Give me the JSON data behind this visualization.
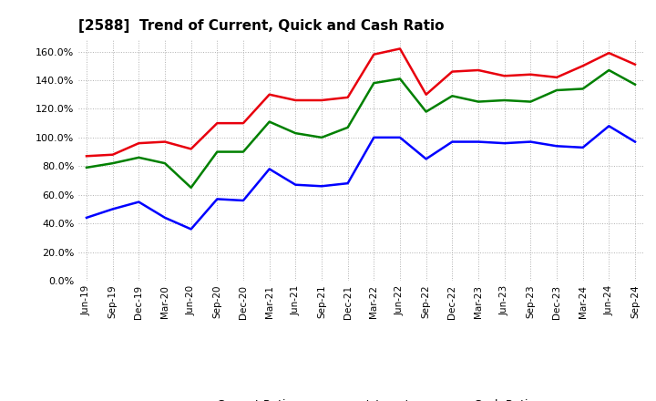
{
  "title": "[2588]  Trend of Current, Quick and Cash Ratio",
  "x_labels": [
    "Jun-19",
    "Sep-19",
    "Dec-19",
    "Mar-20",
    "Jun-20",
    "Sep-20",
    "Dec-20",
    "Mar-21",
    "Jun-21",
    "Sep-21",
    "Dec-21",
    "Mar-22",
    "Jun-22",
    "Sep-22",
    "Dec-22",
    "Mar-23",
    "Jun-23",
    "Sep-23",
    "Dec-23",
    "Mar-24",
    "Jun-24",
    "Sep-24"
  ],
  "current_ratio": [
    87,
    88,
    96,
    97,
    92,
    110,
    110,
    130,
    126,
    126,
    128,
    158,
    162,
    130,
    146,
    147,
    143,
    144,
    142,
    150,
    159,
    151
  ],
  "quick_ratio": [
    79,
    82,
    86,
    82,
    65,
    90,
    90,
    111,
    103,
    100,
    107,
    138,
    141,
    118,
    129,
    125,
    126,
    125,
    133,
    134,
    147,
    137
  ],
  "cash_ratio": [
    44,
    50,
    55,
    44,
    36,
    57,
    56,
    78,
    67,
    66,
    68,
    100,
    100,
    85,
    97,
    97,
    96,
    97,
    94,
    93,
    108,
    97
  ],
  "current_color": "#e8000d",
  "quick_color": "#008000",
  "cash_color": "#0000ff",
  "ylim": [
    0,
    168
  ],
  "yticks": [
    0,
    20,
    40,
    60,
    80,
    100,
    120,
    140,
    160
  ],
  "background_color": "#ffffff",
  "grid_color": "#b0b0b0",
  "line_width": 1.8
}
